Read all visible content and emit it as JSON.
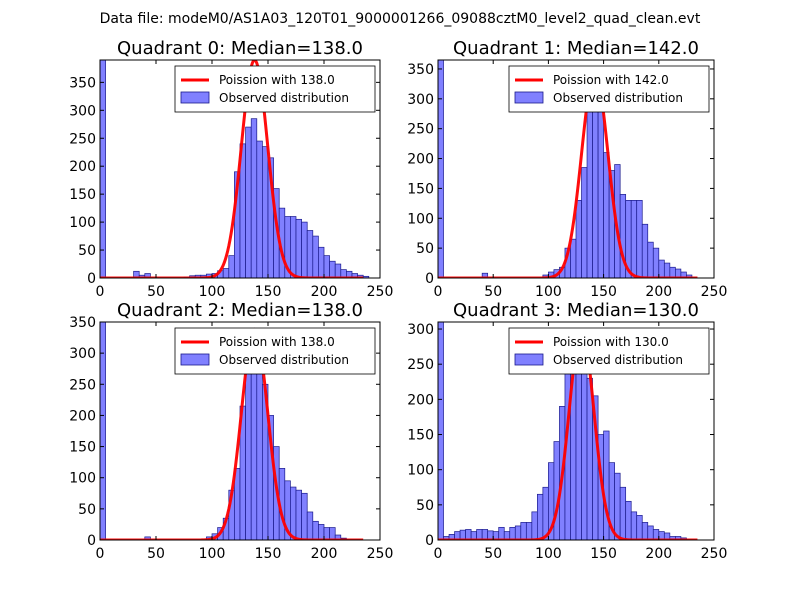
{
  "suptitle": "Data file: modeM0/AS1A03_120T01_9000001266_09088cztM0_level2_quad_clean.evt",
  "colors": {
    "bar_fill": "#8080ff",
    "bar_edge": "#1a1a8c",
    "curve": "#ff0000"
  },
  "chart_data": [
    {
      "type": "bar",
      "title": "Quadrant 0: Median=138.0",
      "xlim": [
        0,
        250
      ],
      "ylim": [
        0,
        390
      ],
      "xticks": [
        0,
        50,
        100,
        150,
        200,
        250
      ],
      "yticks": [
        0,
        50,
        100,
        150,
        200,
        250,
        300,
        350
      ],
      "bin_width": 5,
      "hist": [
        [
          0,
          390
        ],
        [
          30,
          12
        ],
        [
          35,
          5
        ],
        [
          40,
          8
        ],
        [
          75,
          2
        ],
        [
          80,
          4
        ],
        [
          85,
          5
        ],
        [
          90,
          5
        ],
        [
          95,
          7
        ],
        [
          100,
          8
        ],
        [
          105,
          13
        ],
        [
          110,
          17
        ],
        [
          115,
          40
        ],
        [
          120,
          190
        ],
        [
          125,
          240
        ],
        [
          130,
          270
        ],
        [
          135,
          285
        ],
        [
          140,
          245
        ],
        [
          145,
          235
        ],
        [
          150,
          215
        ],
        [
          155,
          160
        ],
        [
          160,
          125
        ],
        [
          165,
          110
        ],
        [
          170,
          110
        ],
        [
          175,
          105
        ],
        [
          180,
          100
        ],
        [
          185,
          85
        ],
        [
          190,
          75
        ],
        [
          195,
          55
        ],
        [
          200,
          40
        ],
        [
          205,
          30
        ],
        [
          210,
          25
        ],
        [
          215,
          15
        ],
        [
          220,
          12
        ],
        [
          225,
          8
        ],
        [
          230,
          5
        ],
        [
          235,
          3
        ]
      ],
      "poisson_mean": 138.0,
      "poisson_peak": 390,
      "legend": {
        "line": "Poission with 138.0",
        "bars": "Observed distribution",
        "placement": "top-right"
      }
    },
    {
      "type": "bar",
      "title": "Quadrant 1: Median=142.0",
      "xlim": [
        0,
        250
      ],
      "ylim": [
        0,
        365
      ],
      "xticks": [
        0,
        50,
        100,
        150,
        200,
        250
      ],
      "yticks": [
        0,
        50,
        100,
        150,
        200,
        250,
        300,
        350
      ],
      "bin_width": 5,
      "hist": [
        [
          0,
          365
        ],
        [
          40,
          8
        ],
        [
          95,
          5
        ],
        [
          100,
          10
        ],
        [
          105,
          14
        ],
        [
          110,
          18
        ],
        [
          115,
          50
        ],
        [
          120,
          65
        ],
        [
          125,
          130
        ],
        [
          130,
          185
        ],
        [
          135,
          300
        ],
        [
          140,
          320
        ],
        [
          145,
          280
        ],
        [
          150,
          210
        ],
        [
          155,
          180
        ],
        [
          160,
          190
        ],
        [
          165,
          140
        ],
        [
          170,
          130
        ],
        [
          175,
          130
        ],
        [
          180,
          130
        ],
        [
          185,
          90
        ],
        [
          190,
          60
        ],
        [
          195,
          50
        ],
        [
          200,
          30
        ],
        [
          205,
          25
        ],
        [
          210,
          18
        ],
        [
          215,
          15
        ],
        [
          220,
          10
        ],
        [
          225,
          5
        ]
      ],
      "poisson_mean": 142.0,
      "poisson_peak": 345,
      "legend": {
        "line": "Poission with 142.0",
        "bars": "Observed distribution",
        "placement": "top-right"
      }
    },
    {
      "type": "bar",
      "title": "Quadrant 2: Median=138.0",
      "xlim": [
        0,
        250
      ],
      "ylim": [
        0,
        350
      ],
      "xticks": [
        0,
        50,
        100,
        150,
        200,
        250
      ],
      "yticks": [
        0,
        50,
        100,
        150,
        200,
        250,
        300,
        350
      ],
      "bin_width": 5,
      "hist": [
        [
          0,
          350
        ],
        [
          40,
          5
        ],
        [
          95,
          5
        ],
        [
          100,
          10
        ],
        [
          105,
          20
        ],
        [
          110,
          35
        ],
        [
          115,
          80
        ],
        [
          120,
          115
        ],
        [
          125,
          215
        ],
        [
          130,
          330
        ],
        [
          135,
          320
        ],
        [
          140,
          310
        ],
        [
          145,
          250
        ],
        [
          150,
          200
        ],
        [
          155,
          150
        ],
        [
          160,
          115
        ],
        [
          165,
          95
        ],
        [
          170,
          85
        ],
        [
          175,
          80
        ],
        [
          180,
          75
        ],
        [
          185,
          45
        ],
        [
          190,
          30
        ],
        [
          195,
          25
        ],
        [
          200,
          20
        ],
        [
          205,
          20
        ],
        [
          210,
          8
        ],
        [
          215,
          3
        ]
      ],
      "poisson_mean": 138.0,
      "poisson_peak": 338,
      "legend": {
        "line": "Poission with 138.0",
        "bars": "Observed distribution",
        "placement": "top-right"
      }
    },
    {
      "type": "bar",
      "title": "Quadrant 3: Median=130.0",
      "xlim": [
        0,
        250
      ],
      "ylim": [
        0,
        310
      ],
      "xticks": [
        0,
        50,
        100,
        150,
        200,
        250
      ],
      "yticks": [
        0,
        50,
        100,
        150,
        200,
        250,
        300
      ],
      "bin_width": 5,
      "hist": [
        [
          0,
          310
        ],
        [
          5,
          5
        ],
        [
          10,
          8
        ],
        [
          15,
          12
        ],
        [
          20,
          14
        ],
        [
          25,
          15
        ],
        [
          30,
          12
        ],
        [
          35,
          15
        ],
        [
          40,
          15
        ],
        [
          45,
          13
        ],
        [
          50,
          12
        ],
        [
          55,
          18
        ],
        [
          60,
          12
        ],
        [
          65,
          18
        ],
        [
          70,
          20
        ],
        [
          75,
          25
        ],
        [
          80,
          25
        ],
        [
          85,
          40
        ],
        [
          90,
          65
        ],
        [
          95,
          75
        ],
        [
          100,
          110
        ],
        [
          105,
          140
        ],
        [
          110,
          190
        ],
        [
          115,
          250
        ],
        [
          120,
          290
        ],
        [
          125,
          300
        ],
        [
          130,
          275
        ],
        [
          135,
          230
        ],
        [
          140,
          205
        ],
        [
          145,
          150
        ],
        [
          150,
          155
        ],
        [
          155,
          110
        ],
        [
          160,
          95
        ],
        [
          165,
          75
        ],
        [
          170,
          55
        ],
        [
          175,
          40
        ],
        [
          180,
          35
        ],
        [
          185,
          25
        ],
        [
          190,
          20
        ],
        [
          195,
          15
        ],
        [
          200,
          12
        ],
        [
          205,
          10
        ],
        [
          210,
          5
        ],
        [
          215,
          5
        ],
        [
          220,
          3
        ]
      ],
      "poisson_mean": 130.0,
      "poisson_peak": 298,
      "legend": {
        "line": "Poission with 130.0",
        "bars": "Observed distribution",
        "placement": "top-right"
      }
    }
  ]
}
